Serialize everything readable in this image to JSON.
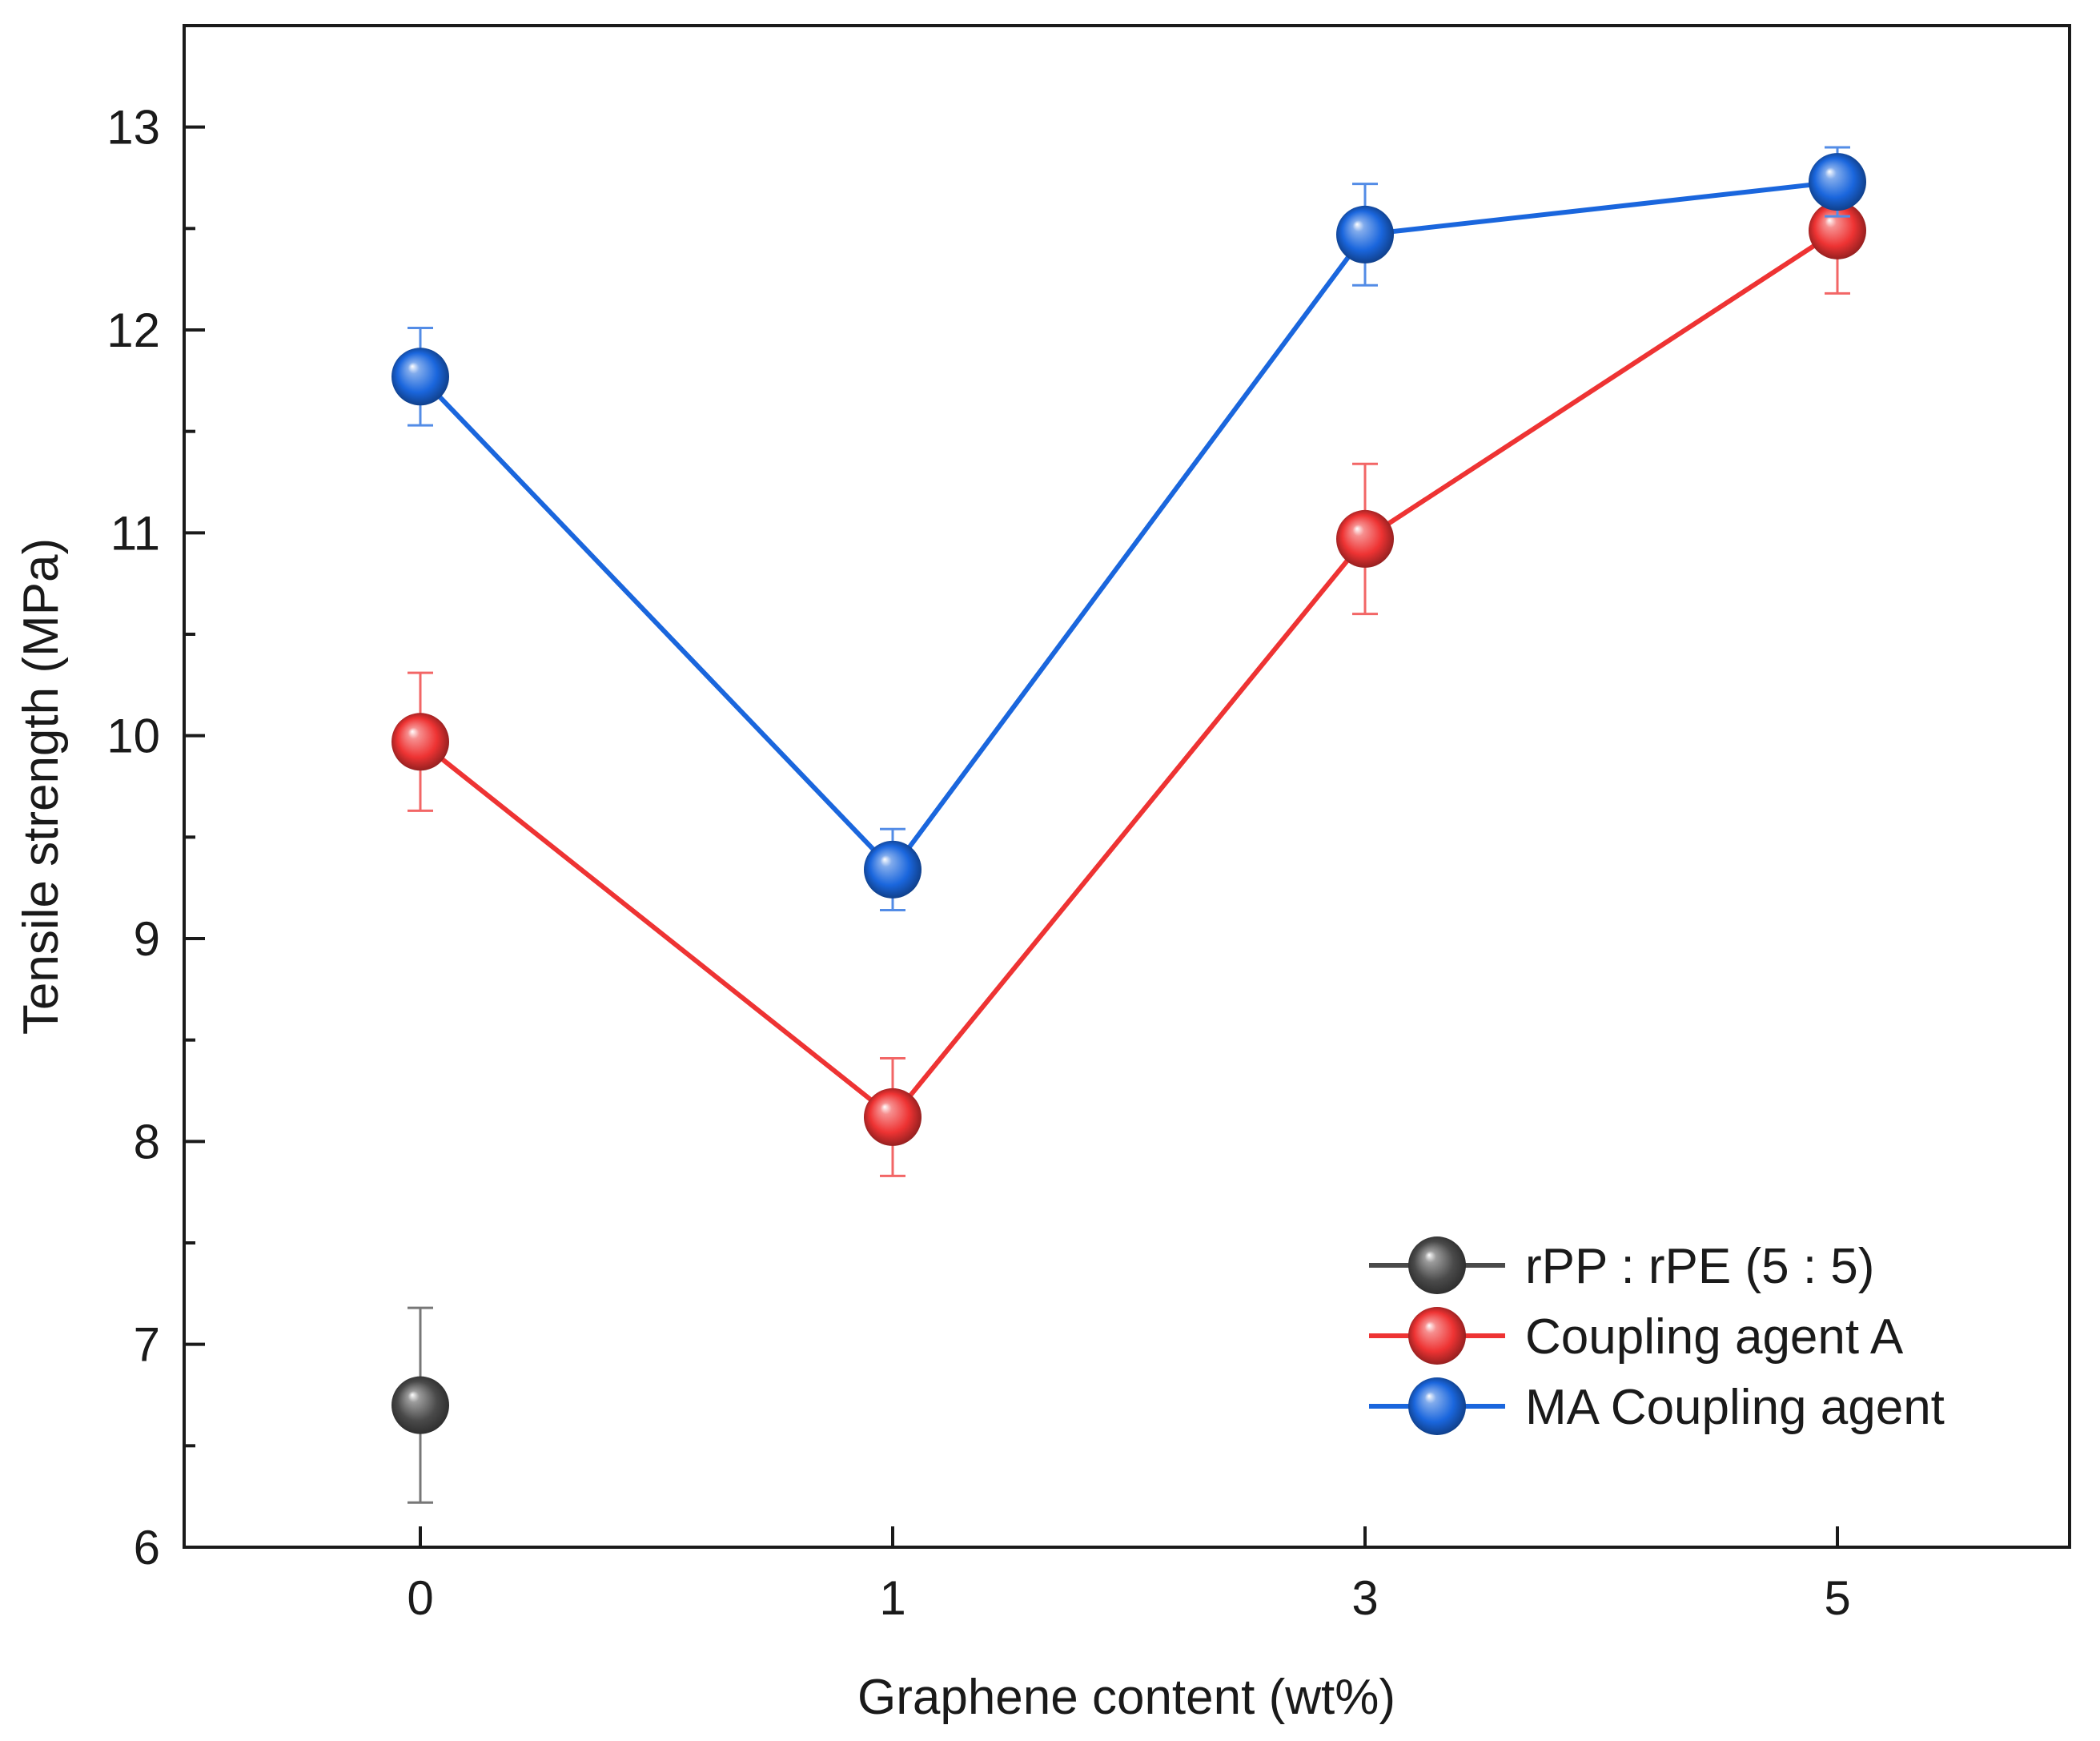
{
  "chart_data": {
    "type": "line",
    "title": "",
    "xlabel": "Graphene content (wt%)",
    "ylabel": "Tensile strength (MPa)",
    "categories": [
      "0",
      "1",
      "3",
      "5"
    ],
    "ylim": [
      6,
      13.5
    ],
    "yticks": [
      6,
      7,
      8,
      9,
      10,
      11,
      12,
      13
    ],
    "y_minor_step": 0.5,
    "grid": false,
    "legend_position": "bottom-right",
    "series": [
      {
        "name": "rPP : rPE (5 : 5)",
        "color": "#4a4a4a",
        "line": false,
        "points": [
          {
            "category": "0",
            "value": 6.7,
            "error": 0.48
          }
        ]
      },
      {
        "name": "Coupling agent A",
        "color": "#ee3333",
        "line": true,
        "points": [
          {
            "category": "0",
            "value": 9.97,
            "error": 0.34
          },
          {
            "category": "1",
            "value": 8.12,
            "error": 0.29
          },
          {
            "category": "3",
            "value": 10.97,
            "error": 0.37
          },
          {
            "category": "5",
            "value": 12.49,
            "error": 0.31
          }
        ]
      },
      {
        "name": "MA Coupling agent",
        "color": "#1a66dd",
        "line": true,
        "points": [
          {
            "category": "0",
            "value": 11.77,
            "error": 0.24
          },
          {
            "category": "1",
            "value": 9.34,
            "error": 0.2
          },
          {
            "category": "3",
            "value": 12.47,
            "error": 0.25
          },
          {
            "category": "5",
            "value": 12.73,
            "error": 0.17
          }
        ]
      }
    ]
  }
}
